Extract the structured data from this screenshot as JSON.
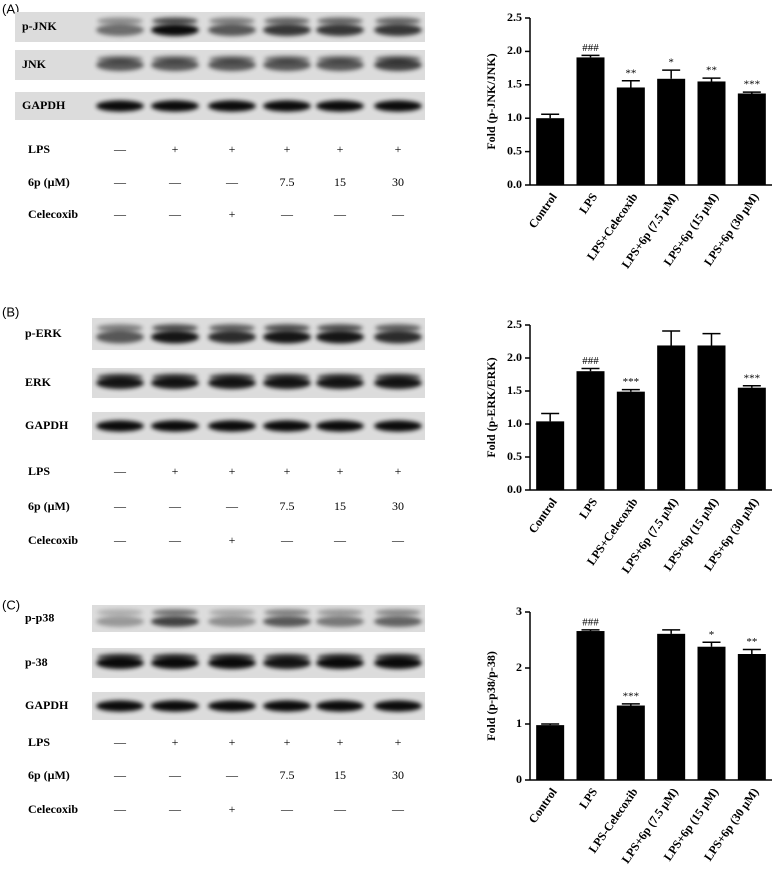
{
  "panels": [
    {
      "label": "(A)",
      "blot_rows": [
        "p-JNK",
        "JNK",
        "GAPDH"
      ],
      "treatments": [
        {
          "name": "LPS",
          "cells": [
            "—",
            "+",
            "+",
            "+",
            "+",
            "+"
          ]
        },
        {
          "name": "6p (μM)",
          "cells": [
            "—",
            "—",
            "—",
            "7.5",
            "15",
            "30"
          ]
        },
        {
          "name": "Celecoxib",
          "cells": [
            "—",
            "—",
            "+",
            "—",
            "—",
            "—"
          ]
        }
      ]
    },
    {
      "label": "(B)",
      "blot_rows": [
        "p-ERK",
        "ERK",
        "GAPDH"
      ],
      "treatments": [
        {
          "name": "LPS",
          "cells": [
            "—",
            "+",
            "+",
            "+",
            "+",
            "+"
          ]
        },
        {
          "name": "6p (μM)",
          "cells": [
            "—",
            "—",
            "—",
            "7.5",
            "15",
            "30"
          ]
        },
        {
          "name": "Celecoxib",
          "cells": [
            "—",
            "—",
            "+",
            "—",
            "—",
            "—"
          ]
        }
      ]
    },
    {
      "label": "(C)",
      "blot_rows": [
        "p-p38",
        "p-38",
        "GAPDH"
      ],
      "treatments": [
        {
          "name": "LPS",
          "cells": [
            "—",
            "+",
            "+",
            "+",
            "+",
            "+"
          ]
        },
        {
          "name": "6p (μM)",
          "cells": [
            "—",
            "—",
            "—",
            "7.5",
            "15",
            "30"
          ]
        },
        {
          "name": "Celecoxib",
          "cells": [
            "—",
            "—",
            "+",
            "—",
            "—",
            "—"
          ]
        }
      ]
    }
  ],
  "chart_data": [
    {
      "type": "bar",
      "ylabel": "Fold (p-JNK/JNK)",
      "color": "#000000",
      "categories": [
        "Control",
        "LPS",
        "LPS+Celecoxib",
        "LPS+6p (7.5 μM)",
        "LPS+6p (15 μM)",
        "LPS+6p (30 μM)"
      ],
      "values": [
        1.0,
        1.91,
        1.46,
        1.59,
        1.55,
        1.37
      ],
      "errors": [
        0.06,
        0.03,
        0.1,
        0.13,
        0.05,
        0.02
      ],
      "annotations": [
        null,
        "###",
        "**",
        "*",
        "**",
        "***"
      ],
      "ylim": [
        0,
        2.5
      ],
      "yticks": [
        {
          "value": 0,
          "label": "0.0"
        },
        0.5,
        {
          "value": 1,
          "label": "1.0"
        },
        1.5,
        {
          "value": 2,
          "label": "2.0"
        },
        2.5
      ]
    },
    {
      "type": "bar",
      "ylabel": "Fold (p-ERK/ERK)",
      "color": "#000000",
      "categories": [
        "Control",
        "LPS",
        "LPS+Celecoxib",
        "LPS+6p (7.5 μM)",
        "LPS+6p (15 μM)",
        "LPS+6p (30 μM)"
      ],
      "values": [
        1.04,
        1.8,
        1.49,
        2.19,
        2.19,
        1.55
      ],
      "errors": [
        0.12,
        0.04,
        0.03,
        0.22,
        0.18,
        0.03
      ],
      "annotations": [
        null,
        "###",
        "***",
        null,
        null,
        "***"
      ],
      "ylim": [
        0,
        2.5
      ],
      "yticks": [
        {
          "value": 0,
          "label": "0.0"
        },
        0.5,
        {
          "value": 1,
          "label": "1.0"
        },
        1.5,
        {
          "value": 2,
          "label": "2.0"
        },
        2.5
      ]
    },
    {
      "type": "bar",
      "ylabel": "Fold (p-p38/p-38)",
      "color": "#000000",
      "categories": [
        "Control",
        "LPS",
        "LPS-Celecoxib",
        "LPS+6p (7.5 μM)",
        "LPS+6p (15 μM)",
        "LPS+6p (30 μM)"
      ],
      "values": [
        0.98,
        2.66,
        1.33,
        2.61,
        2.38,
        2.25
      ],
      "errors": [
        0.02,
        0.02,
        0.03,
        0.07,
        0.08,
        0.08
      ],
      "annotations": [
        null,
        "###",
        "***",
        null,
        "*",
        "**"
      ],
      "ylim": [
        0,
        3
      ],
      "yticks": [
        0,
        1,
        2,
        3
      ]
    }
  ]
}
